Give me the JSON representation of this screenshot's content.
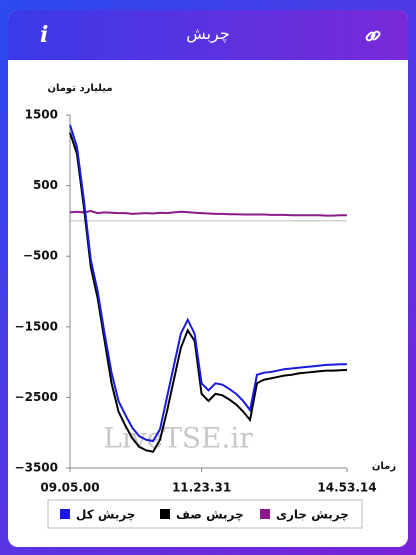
{
  "info_icon": "i",
  "chart_data": {
    "type": "line",
    "title": "چربش",
    "y_label": "میلیارد تومان",
    "x_label": "زمان",
    "watermark": "LiveTSE.ir",
    "categories": [
      "09.05.00",
      null,
      null,
      null,
      null,
      null,
      null,
      null,
      null,
      null,
      null,
      null,
      null,
      null,
      null,
      null,
      null,
      null,
      null,
      "11.23.31",
      null,
      null,
      null,
      null,
      null,
      null,
      null,
      null,
      null,
      null,
      null,
      null,
      null,
      null,
      null,
      null,
      null,
      null,
      null,
      null,
      "14.53.14"
    ],
    "series": [
      {
        "name": "چربش کل",
        "color": "#1a1adc",
        "values": [
          1360,
          1050,
          300,
          -550,
          -1000,
          -1600,
          -2150,
          -2550,
          -2750,
          -2930,
          -3050,
          -3100,
          -3120,
          -2950,
          -2500,
          -2050,
          -1600,
          -1400,
          -1600,
          -2300,
          -2400,
          -2300,
          -2320,
          -2380,
          -2450,
          -2550,
          -2680,
          -2180,
          -2150,
          -2140,
          -2120,
          -2100,
          -2090,
          -2080,
          -2070,
          -2060,
          -2050,
          -2040,
          -2035,
          -2030,
          -2030
        ]
      },
      {
        "name": "چربش صف",
        "color": "#000000",
        "values": [
          1250,
          950,
          200,
          -650,
          -1100,
          -1700,
          -2300,
          -2700,
          -2900,
          -3080,
          -3200,
          -3250,
          -3270,
          -3100,
          -2700,
          -2250,
          -1800,
          -1550,
          -1700,
          -2450,
          -2550,
          -2450,
          -2470,
          -2530,
          -2600,
          -2700,
          -2820,
          -2300,
          -2250,
          -2230,
          -2210,
          -2190,
          -2180,
          -2160,
          -2150,
          -2140,
          -2130,
          -2120,
          -2120,
          -2115,
          -2110
        ]
      },
      {
        "name": "چربش جاری",
        "color": "#8b1a8b",
        "values": [
          120,
          130,
          120,
          140,
          110,
          120,
          115,
          110,
          110,
          100,
          105,
          110,
          105,
          115,
          110,
          120,
          130,
          125,
          115,
          110,
          105,
          100,
          100,
          95,
          95,
          90,
          90,
          90,
          90,
          85,
          85,
          85,
          80,
          80,
          80,
          80,
          80,
          75,
          75,
          80,
          80
        ]
      }
    ],
    "ylim": [
      -3500,
      1500
    ],
    "yticks": [
      1500,
      500,
      {
        "value": -500,
        "label": "−500"
      },
      {
        "value": -1500,
        "label": "−1500"
      },
      {
        "value": -2500,
        "label": "−2500"
      },
      {
        "value": -3500,
        "label": "−3500"
      }
    ],
    "reference_line": 0
  }
}
